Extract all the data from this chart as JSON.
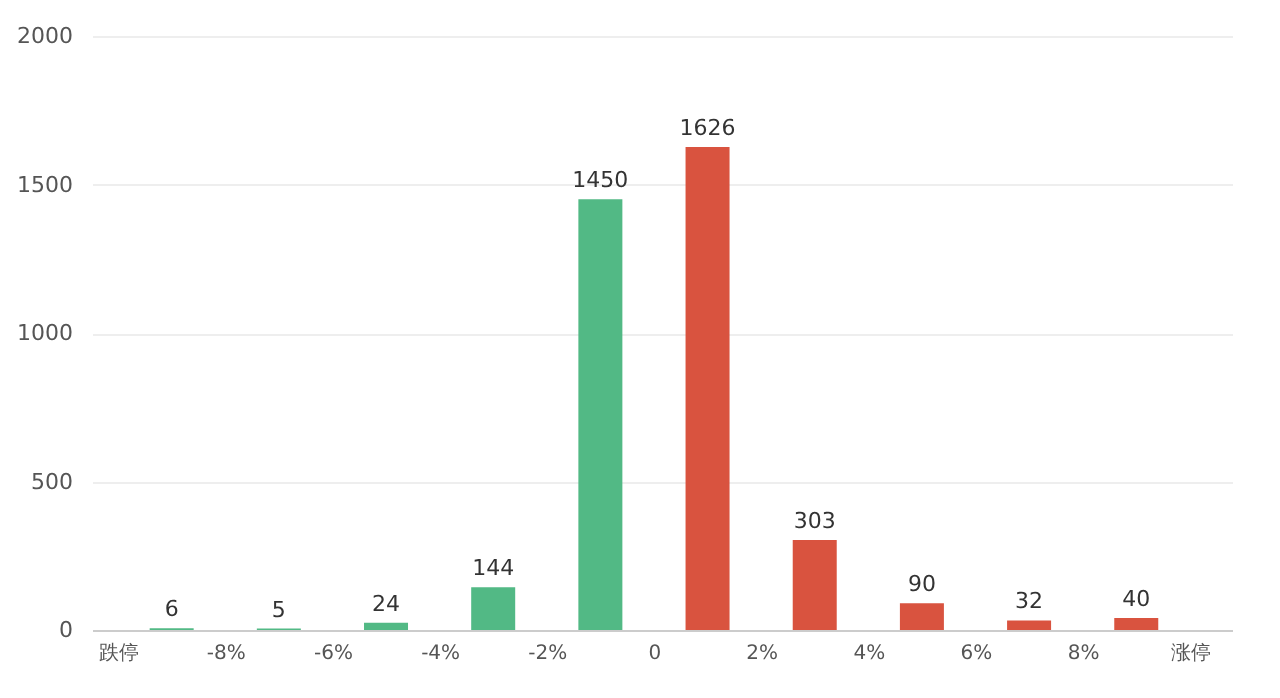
{
  "chart_data": {
    "type": "bar",
    "x": [
      -9,
      -7,
      -5,
      -3,
      -1,
      1,
      3,
      5,
      7,
      9
    ],
    "values": [
      6,
      5,
      24,
      144,
      1450,
      1626,
      303,
      90,
      32,
      40
    ],
    "colors": [
      "#52b985",
      "#52b985",
      "#52b985",
      "#52b985",
      "#52b985",
      "#d9533f",
      "#d9533f",
      "#d9533f",
      "#d9533f",
      "#d9533f"
    ],
    "xlim": [
      -10.3,
      10.6
    ],
    "xticks": [
      {
        "value": -10,
        "label": "跌停"
      },
      {
        "value": -8,
        "label": "-8%"
      },
      {
        "value": -6,
        "label": "-6%"
      },
      {
        "value": -4,
        "label": "-4%"
      },
      {
        "value": -2,
        "label": "-2%"
      },
      {
        "value": 0,
        "label": "0"
      },
      {
        "value": 2,
        "label": "2%"
      },
      {
        "value": 4,
        "label": "4%"
      },
      {
        "value": 6,
        "label": "6%"
      },
      {
        "value": 8,
        "label": "8%"
      },
      {
        "value": 10,
        "label": "涨停"
      }
    ],
    "ylim": [
      0,
      2000
    ],
    "yticks": [
      0,
      500,
      1000,
      1500,
      2000
    ],
    "grid": "y",
    "data_labels": true
  }
}
